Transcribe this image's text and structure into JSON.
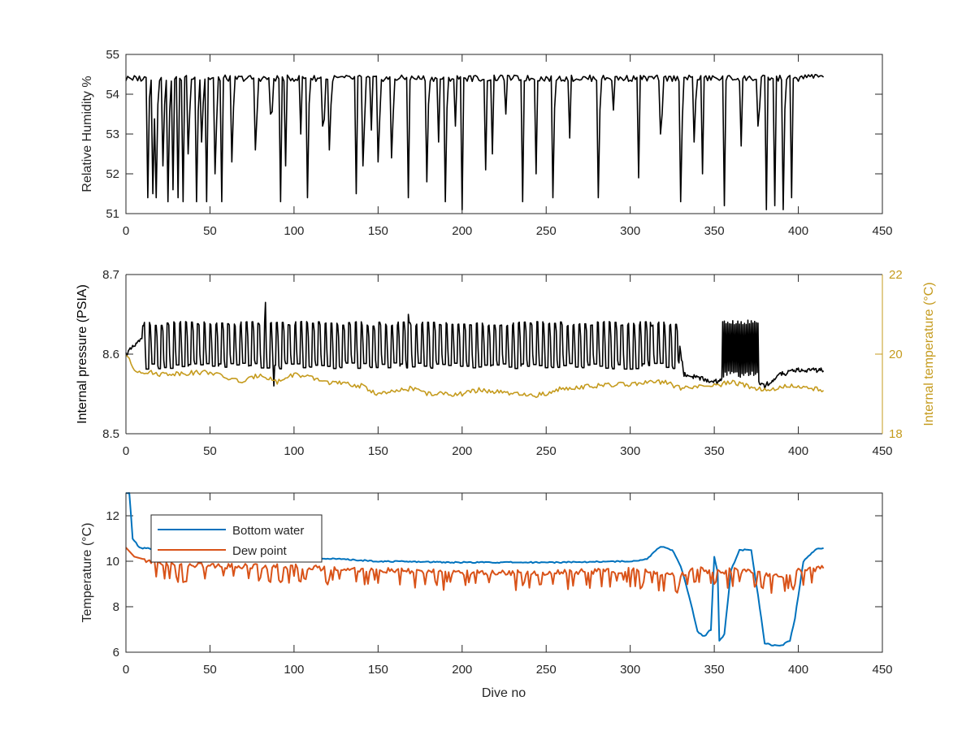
{
  "chart_data": [
    {
      "type": "line",
      "ylabel": "Relative Humidity %",
      "xlim": [
        0,
        450
      ],
      "ylim": [
        51,
        55
      ],
      "xticks": [
        "0",
        "50",
        "100",
        "150",
        "200",
        "250",
        "300",
        "350",
        "400",
        "450"
      ],
      "yticks": [
        "51",
        "52",
        "53",
        "54",
        "55"
      ],
      "series": [
        {
          "color": "#000000",
          "baseline": 54.4,
          "x_range": [
            0,
            415
          ],
          "dips": [
            [
              13,
              51.4
            ],
            [
              16,
              51.5
            ],
            [
              18,
              51.4
            ],
            [
              22,
              52.2
            ],
            [
              25,
              51.3
            ],
            [
              28,
              51.6
            ],
            [
              31,
              51.4
            ],
            [
              34,
              51.3
            ],
            [
              37,
              52.5
            ],
            [
              42,
              51.3
            ],
            [
              45,
              52.8
            ],
            [
              48,
              51.3
            ],
            [
              53,
              52.0
            ],
            [
              57,
              51.3
            ],
            [
              63,
              52.3
            ],
            [
              77,
              52.6
            ],
            [
              86,
              53.5
            ],
            [
              92,
              51.3
            ],
            [
              95,
              52.2
            ],
            [
              104,
              53.0
            ],
            [
              108,
              51.4
            ],
            [
              117,
              53.2
            ],
            [
              121,
              52.6
            ],
            [
              137,
              51.5
            ],
            [
              141,
              52.2
            ],
            [
              146,
              53.1
            ],
            [
              150,
              52.3
            ],
            [
              158,
              52.4
            ],
            [
              168,
              51.4
            ],
            [
              179,
              51.8
            ],
            [
              186,
              52.8
            ],
            [
              190,
              51.3
            ],
            [
              196,
              53.2
            ],
            [
              200,
              51.1
            ],
            [
              214,
              52.1
            ],
            [
              218,
              52.5
            ],
            [
              226,
              53.5
            ],
            [
              236,
              51.3
            ],
            [
              244,
              52.0
            ],
            [
              254,
              51.4
            ],
            [
              264,
              52.9
            ],
            [
              281,
              51.4
            ],
            [
              290,
              53.6
            ],
            [
              305,
              51.9
            ],
            [
              318,
              53.0
            ],
            [
              330,
              51.3
            ],
            [
              338,
              52.8
            ],
            [
              343,
              52.0
            ],
            [
              356,
              51.2
            ],
            [
              366,
              52.7
            ],
            [
              376,
              53.2
            ],
            [
              381,
              51.1
            ],
            [
              386,
              51.2
            ],
            [
              391,
              51.1
            ],
            [
              396,
              51.4
            ],
            [
              404,
              51.5
            ]
          ]
        }
      ]
    },
    {
      "type": "line",
      "ylabel": "Internal pressure (PSIA)",
      "y2label": "Internal temperature (°C)",
      "xlim": [
        0,
        450
      ],
      "ylim": [
        8.5,
        8.7
      ],
      "y2lim": [
        18,
        22
      ],
      "xticks": [
        "0",
        "50",
        "100",
        "150",
        "200",
        "250",
        "300",
        "350",
        "400",
        "450"
      ],
      "yticks": [
        "8.5",
        "8.6",
        "8.7"
      ],
      "y2ticks": [
        "18",
        "20",
        "22"
      ],
      "series": [
        {
          "axis": "left",
          "color": "#000000",
          "points": [
            [
              0,
              8.6
            ],
            [
              5,
              8.61
            ],
            [
              10,
              8.62
            ],
            [
              50,
              8.62
            ],
            [
              80,
              8.63
            ],
            [
              100,
              8.625
            ],
            [
              150,
              8.615
            ],
            [
              200,
              8.62
            ],
            [
              250,
              8.615
            ],
            [
              300,
              8.62
            ],
            [
              329,
              8.615
            ],
            [
              332,
              8.575
            ],
            [
              350,
              8.565
            ],
            [
              360,
              8.57
            ],
            [
              370,
              8.57
            ],
            [
              380,
              8.56
            ],
            [
              390,
              8.575
            ],
            [
              400,
              8.58
            ],
            [
              415,
              8.58
            ]
          ],
          "oscillations": [
            [
              10,
              329,
              8.638,
              8.585,
              3.6
            ],
            [
              355,
              376,
              8.64,
              8.575,
              1.0
            ]
          ],
          "spikes": [
            [
              83,
              8.665
            ],
            [
              88,
              8.56
            ],
            [
              168,
              8.65
            ],
            [
              312,
              8.64
            ]
          ]
        },
        {
          "axis": "right",
          "color": "#C59B1E",
          "points": [
            [
              0,
              20.0
            ],
            [
              5,
              19.6
            ],
            [
              20,
              19.5
            ],
            [
              50,
              19.55
            ],
            [
              60,
              19.4
            ],
            [
              70,
              19.3
            ],
            [
              80,
              19.5
            ],
            [
              90,
              19.3
            ],
            [
              100,
              19.5
            ],
            [
              110,
              19.4
            ],
            [
              120,
              19.3
            ],
            [
              140,
              19.2
            ],
            [
              150,
              19.0
            ],
            [
              160,
              19.05
            ],
            [
              170,
              19.15
            ],
            [
              180,
              19.0
            ],
            [
              200,
              19.0
            ],
            [
              210,
              19.1
            ],
            [
              220,
              19.05
            ],
            [
              240,
              18.95
            ],
            [
              250,
              19.0
            ],
            [
              260,
              19.15
            ],
            [
              280,
              19.2
            ],
            [
              300,
              19.25
            ],
            [
              320,
              19.3
            ],
            [
              330,
              19.15
            ],
            [
              350,
              19.2
            ],
            [
              360,
              19.3
            ],
            [
              380,
              19.1
            ],
            [
              395,
              19.2
            ],
            [
              415,
              19.1
            ]
          ]
        }
      ]
    },
    {
      "type": "line",
      "ylabel": "Temperature (°C)",
      "xlabel": "Dive no",
      "xlim": [
        0,
        450
      ],
      "ylim": [
        6,
        13
      ],
      "xticks": [
        "0",
        "50",
        "100",
        "150",
        "200",
        "250",
        "300",
        "350",
        "400",
        "450"
      ],
      "yticks": [
        "6",
        "8",
        "10",
        "12"
      ],
      "legend_position": "top-left",
      "series": [
        {
          "name": "Bottom water",
          "color": "#0072BD",
          "points": [
            [
              0,
              13.0
            ],
            [
              2,
              13.0
            ],
            [
              4,
              11.0
            ],
            [
              8,
              10.6
            ],
            [
              20,
              10.5
            ],
            [
              50,
              10.4
            ],
            [
              100,
              10.2
            ],
            [
              150,
              10.0
            ],
            [
              200,
              9.95
            ],
            [
              250,
              9.95
            ],
            [
              300,
              10.0
            ],
            [
              310,
              10.1
            ],
            [
              318,
              10.65
            ],
            [
              325,
              10.5
            ],
            [
              330,
              9.8
            ],
            [
              336,
              8.2
            ],
            [
              340,
              6.9
            ],
            [
              344,
              6.7
            ],
            [
              348,
              7.0
            ],
            [
              350,
              10.2
            ],
            [
              352,
              9.5
            ],
            [
              353,
              6.5
            ],
            [
              356,
              6.8
            ],
            [
              360,
              9.6
            ],
            [
              365,
              10.5
            ],
            [
              372,
              10.5
            ],
            [
              376,
              8.5
            ],
            [
              380,
              6.4
            ],
            [
              385,
              6.3
            ],
            [
              390,
              6.3
            ],
            [
              395,
              6.5
            ],
            [
              398,
              7.5
            ],
            [
              403,
              10.0
            ],
            [
              410,
              10.5
            ],
            [
              415,
              10.6
            ]
          ]
        },
        {
          "name": "Dew point",
          "color": "#D95319",
          "points": [
            [
              0,
              10.6
            ],
            [
              5,
              10.2
            ],
            [
              20,
              9.9
            ],
            [
              50,
              9.8
            ],
            [
              100,
              9.75
            ],
            [
              150,
              9.6
            ],
            [
              200,
              9.5
            ],
            [
              250,
              9.5
            ],
            [
              300,
              9.6
            ],
            [
              330,
              9.4
            ],
            [
              340,
              9.7
            ],
            [
              350,
              9.5
            ],
            [
              360,
              9.6
            ],
            [
              375,
              9.5
            ],
            [
              390,
              9.3
            ],
            [
              400,
              9.6
            ],
            [
              415,
              9.7
            ]
          ]
        }
      ]
    }
  ]
}
